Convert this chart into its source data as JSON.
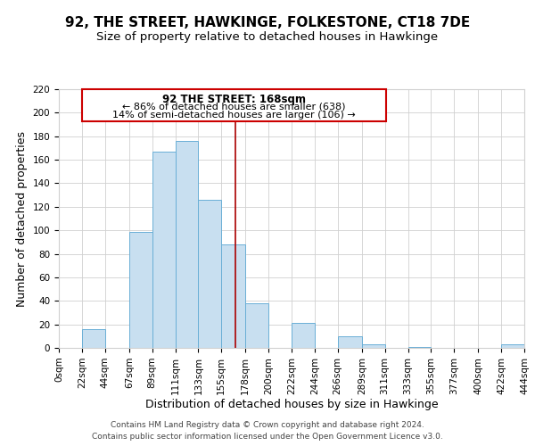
{
  "title": "92, THE STREET, HAWKINGE, FOLKESTONE, CT18 7DE",
  "subtitle": "Size of property relative to detached houses in Hawkinge",
  "xlabel": "Distribution of detached houses by size in Hawkinge",
  "ylabel": "Number of detached properties",
  "bar_left_edges": [
    0,
    22,
    44,
    67,
    89,
    111,
    133,
    155,
    178,
    200,
    222,
    244,
    266,
    289,
    311,
    333,
    355,
    377,
    400,
    422
  ],
  "bar_heights": [
    0,
    16,
    0,
    99,
    167,
    176,
    126,
    88,
    38,
    0,
    21,
    0,
    10,
    3,
    0,
    1,
    0,
    0,
    0,
    3
  ],
  "bar_widths": [
    22,
    22,
    23,
    22,
    22,
    22,
    22,
    23,
    22,
    22,
    22,
    22,
    23,
    22,
    22,
    22,
    22,
    23,
    22,
    22
  ],
  "bar_color": "#c8dff0",
  "bar_edgecolor": "#6aafd6",
  "reference_line_x": 168,
  "reference_line_color": "#aa0000",
  "xtick_labels": [
    "0sqm",
    "22sqm",
    "44sqm",
    "67sqm",
    "89sqm",
    "111sqm",
    "133sqm",
    "155sqm",
    "178sqm",
    "200sqm",
    "222sqm",
    "244sqm",
    "266sqm",
    "289sqm",
    "311sqm",
    "333sqm",
    "355sqm",
    "377sqm",
    "400sqm",
    "422sqm",
    "444sqm"
  ],
  "xtick_positions": [
    0,
    22,
    44,
    67,
    89,
    111,
    133,
    155,
    178,
    200,
    222,
    244,
    266,
    289,
    311,
    333,
    355,
    377,
    400,
    422,
    444
  ],
  "ylim": [
    0,
    220
  ],
  "xlim": [
    0,
    444
  ],
  "yticks": [
    0,
    20,
    40,
    60,
    80,
    100,
    120,
    140,
    160,
    180,
    200,
    220
  ],
  "annotation_title": "92 THE STREET: 168sqm",
  "annotation_line1": "← 86% of detached houses are smaller (638)",
  "annotation_line2": "14% of semi-detached houses are larger (106) →",
  "annotation_box_color": "#cc0000",
  "footer_line1": "Contains HM Land Registry data © Crown copyright and database right 2024.",
  "footer_line2": "Contains public sector information licensed under the Open Government Licence v3.0.",
  "grid_color": "#d0d0d0",
  "background_color": "#ffffff",
  "title_fontsize": 11,
  "subtitle_fontsize": 9.5,
  "axis_label_fontsize": 9,
  "tick_fontsize": 7.5,
  "annotation_fontsize": 8.5,
  "footer_fontsize": 6.5
}
